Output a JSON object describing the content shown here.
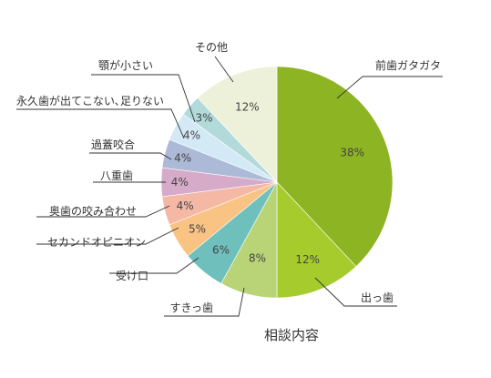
{
  "chart_data": {
    "type": "pie",
    "title": "相談内容",
    "start": "12 o'clock, clockwise",
    "slices": [
      {
        "label": "前歯ガタガタ",
        "value": 38,
        "value_label": "38%",
        "color": "#8db422"
      },
      {
        "label": "出っ歯",
        "value": 12,
        "value_label": "12%",
        "color": "#a5cc2c"
      },
      {
        "label": "すきっ歯",
        "value": 8,
        "value_label": "8%",
        "color": "#b8d477"
      },
      {
        "label": "受け口",
        "value": 6,
        "value_label": "6%",
        "color": "#6fc0bd"
      },
      {
        "label": "セカンドオピニオン",
        "value": 5,
        "value_label": "5%",
        "color": "#f9c384"
      },
      {
        "label": "奥歯の咬み合わせ",
        "value": 4,
        "value_label": "4%",
        "color": "#f4b8a5"
      },
      {
        "label": "八重歯",
        "value": 4,
        "value_label": "4%",
        "color": "#d6abc9"
      },
      {
        "label": "過蓋咬合",
        "value": 4,
        "value_label": "4%",
        "color": "#acb9d7"
      },
      {
        "label": "永久歯が出てこない､足りない",
        "value": 4,
        "value_label": "4%",
        "color": "#d3e9f6"
      },
      {
        "label": "顎が小さい",
        "value": 3,
        "value_label": "3%",
        "color": "#b2dadb"
      },
      {
        "label": "その他",
        "value": 12,
        "value_label": "12%",
        "color": "#eef1da"
      }
    ]
  }
}
